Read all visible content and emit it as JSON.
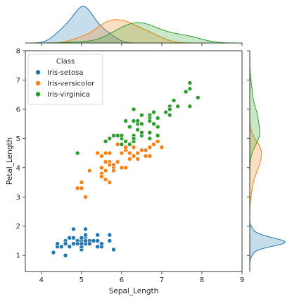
{
  "chart_data": {
    "type": "scatter",
    "kind": "jointplot",
    "xlabel": "Sepal_Length",
    "ylabel": "Petal_Length",
    "xlim": [
      3.6,
      9.0
    ],
    "ylim": [
      0.45,
      8.0
    ],
    "xticks": [
      4,
      5,
      6,
      7,
      8,
      9
    ],
    "yticks": [
      1,
      2,
      3,
      4,
      5,
      6,
      7,
      8
    ],
    "grid": false,
    "legend_position": "top-left",
    "legend_title": "Class",
    "marginals": "kde",
    "series": [
      {
        "name": "Iris-setosa",
        "color": "#1f77b4",
        "x": [
          4.3,
          4.4,
          4.4,
          4.5,
          4.6,
          4.6,
          4.6,
          4.7,
          4.7,
          4.8,
          4.8,
          4.8,
          4.9,
          4.9,
          4.9,
          5.0,
          5.0,
          5.0,
          5.0,
          5.0,
          5.1,
          5.1,
          5.1,
          5.1,
          5.1,
          5.1,
          5.1,
          5.1,
          5.2,
          5.2,
          5.2,
          5.3,
          5.4,
          5.4,
          5.4,
          5.4,
          5.5,
          5.5,
          5.7,
          5.7,
          5.7,
          5.8,
          4.6,
          4.8,
          5.0,
          5.1,
          5.2,
          5.4,
          4.9,
          5.0
        ],
        "y": [
          1.1,
          1.3,
          1.4,
          1.3,
          1.0,
          1.4,
          1.5,
          1.3,
          1.6,
          1.4,
          1.6,
          1.9,
          1.4,
          1.5,
          1.5,
          1.2,
          1.4,
          1.5,
          1.6,
          1.6,
          1.4,
          1.5,
          1.5,
          1.6,
          1.7,
          1.9,
          1.4,
          1.5,
          1.4,
          1.5,
          1.5,
          1.5,
          1.3,
          1.5,
          1.7,
          1.7,
          1.3,
          1.4,
          1.5,
          1.7,
          1.7,
          1.2,
          1.4,
          1.6,
          1.3,
          1.5,
          1.4,
          1.5,
          1.4,
          1.4
        ]
      },
      {
        "name": "Iris-versicolor",
        "color": "#ff7f0e",
        "x": [
          4.9,
          5.0,
          5.0,
          5.1,
          5.2,
          5.4,
          5.5,
          5.5,
          5.5,
          5.5,
          5.6,
          5.6,
          5.6,
          5.7,
          5.7,
          5.7,
          5.7,
          5.8,
          5.8,
          5.8,
          5.9,
          5.9,
          6.0,
          6.0,
          6.0,
          6.0,
          6.1,
          6.1,
          6.1,
          6.1,
          6.2,
          6.2,
          6.3,
          6.3,
          6.3,
          6.4,
          6.4,
          6.5,
          6.6,
          6.6,
          6.7,
          6.7,
          6.7,
          6.8,
          6.9,
          7.0,
          5.6,
          5.5,
          5.9,
          6.2
        ],
        "y": [
          3.3,
          3.3,
          3.5,
          3.0,
          3.9,
          4.5,
          4.0,
          4.4,
          3.8,
          3.7,
          3.6,
          4.2,
          4.5,
          4.2,
          4.5,
          3.5,
          4.1,
          4.0,
          4.1,
          3.9,
          4.2,
          4.8,
          4.0,
          4.5,
          5.1,
          4.5,
          4.0,
          4.6,
          4.7,
          4.7,
          4.3,
          4.5,
          4.4,
          4.9,
          4.7,
          4.3,
          4.5,
          4.6,
          4.4,
          4.6,
          4.4,
          4.7,
          5.0,
          4.8,
          4.9,
          4.7,
          3.9,
          4.0,
          4.2,
          4.8
        ]
      },
      {
        "name": "Iris-virginica",
        "color": "#2ca02c",
        "x": [
          4.9,
          5.6,
          5.7,
          5.8,
          5.8,
          5.8,
          5.9,
          6.0,
          6.0,
          6.1,
          6.1,
          6.2,
          6.3,
          6.3,
          6.3,
          6.3,
          6.3,
          6.4,
          6.4,
          6.4,
          6.4,
          6.5,
          6.5,
          6.5,
          6.5,
          6.7,
          6.7,
          6.7,
          6.7,
          6.7,
          6.8,
          6.8,
          6.9,
          6.9,
          6.9,
          7.1,
          7.2,
          7.2,
          7.2,
          7.3,
          7.4,
          7.6,
          7.7,
          7.7,
          7.7,
          7.7,
          7.9,
          6.2,
          6.0,
          6.4
        ],
        "y": [
          4.5,
          4.9,
          5.0,
          5.1,
          5.1,
          5.1,
          5.1,
          4.8,
          5.0,
          5.6,
          4.9,
          5.4,
          5.6,
          6.0,
          5.1,
          4.9,
          5.0,
          5.6,
          5.3,
          5.5,
          5.6,
          5.8,
          5.1,
          5.2,
          5.5,
          5.8,
          5.7,
          5.6,
          5.2,
          5.0,
          5.9,
          5.5,
          5.7,
          5.1,
          5.4,
          5.9,
          6.1,
          5.8,
          6.0,
          6.3,
          6.1,
          6.6,
          6.7,
          6.9,
          6.7,
          6.1,
          6.4,
          4.8,
          5.1,
          5.3
        ]
      }
    ]
  }
}
